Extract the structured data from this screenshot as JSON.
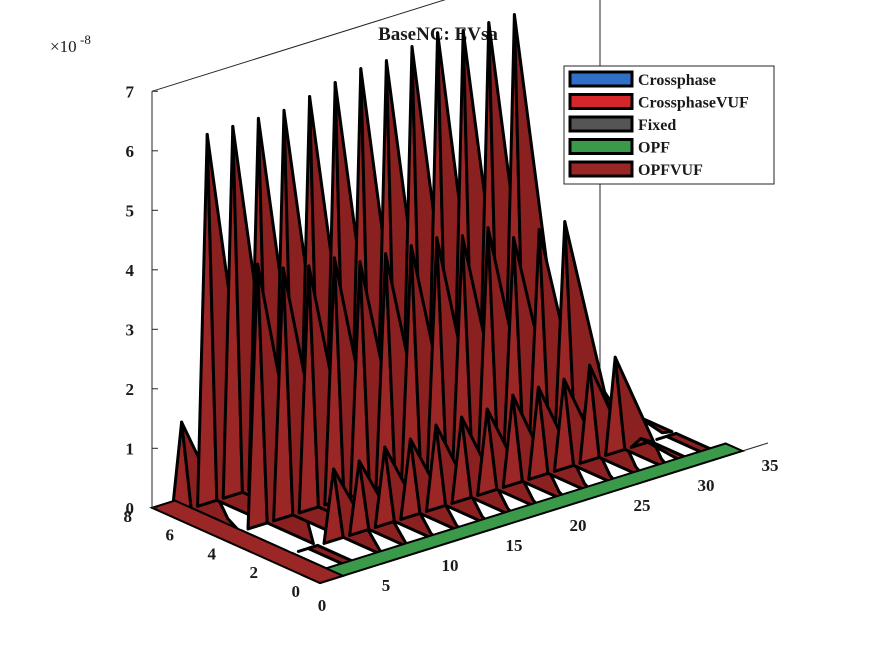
{
  "chart_data": {
    "type": "bar3d",
    "title": "BaseNC: EVsa",
    "y_exponent_prefix": "×10",
    "y_exponent_power": "-8",
    "xlabel": "",
    "ylabel": "",
    "zlabel": "",
    "x_ticks": [
      "0",
      "5",
      "10",
      "15",
      "20",
      "25",
      "30",
      "35"
    ],
    "y_ticks": [
      "0",
      "2",
      "4",
      "6",
      "8"
    ],
    "z_ticks": [
      "0",
      "1",
      "2",
      "3",
      "4",
      "5",
      "6",
      "7"
    ],
    "z_range": [
      0,
      7
    ],
    "x_range": [
      0,
      35
    ],
    "y_range": [
      0,
      8
    ],
    "grid": false,
    "legend_position": "top-right",
    "series_colors": {
      "Crossphase": "#2f6fc8",
      "CrossphaseVUF": "#d4262b",
      "Fixed": "#555555",
      "OPF": "#3a9a4a",
      "OPFVUF": "#9b2626"
    },
    "series": [
      {
        "name": "Crossphase",
        "values": []
      },
      {
        "name": "CrossphaseVUF",
        "values": []
      },
      {
        "name": "Fixed",
        "values": []
      },
      {
        "name": "OPF",
        "values": []
      },
      {
        "name": "OPFVUF",
        "x": [
          1,
          3,
          5,
          7,
          9,
          11,
          13,
          15,
          17,
          19,
          21,
          23,
          25,
          27,
          29,
          31
        ],
        "back_row_values": [
          1.5,
          6.2,
          6.2,
          6.2,
          6.2,
          6.3,
          6.4,
          6.5,
          6.5,
          6.6,
          6.7,
          6.6,
          6.6,
          6.6,
          1.6,
          1.0
        ],
        "mid_row_values": [
          0.0,
          4.4,
          4.2,
          4.1,
          4.1,
          3.9,
          3.9,
          3.9,
          3.9,
          3.8,
          3.8,
          3.5,
          3.5,
          3.5,
          0.5,
          0.2
        ],
        "front_row_values": [
          0.0,
          0.0,
          1.2,
          1.2,
          1.3,
          1.3,
          1.4,
          1.4,
          1.4,
          1.5,
          1.5,
          1.5,
          1.6,
          1.6,
          0.1,
          0.0
        ]
      }
    ]
  }
}
